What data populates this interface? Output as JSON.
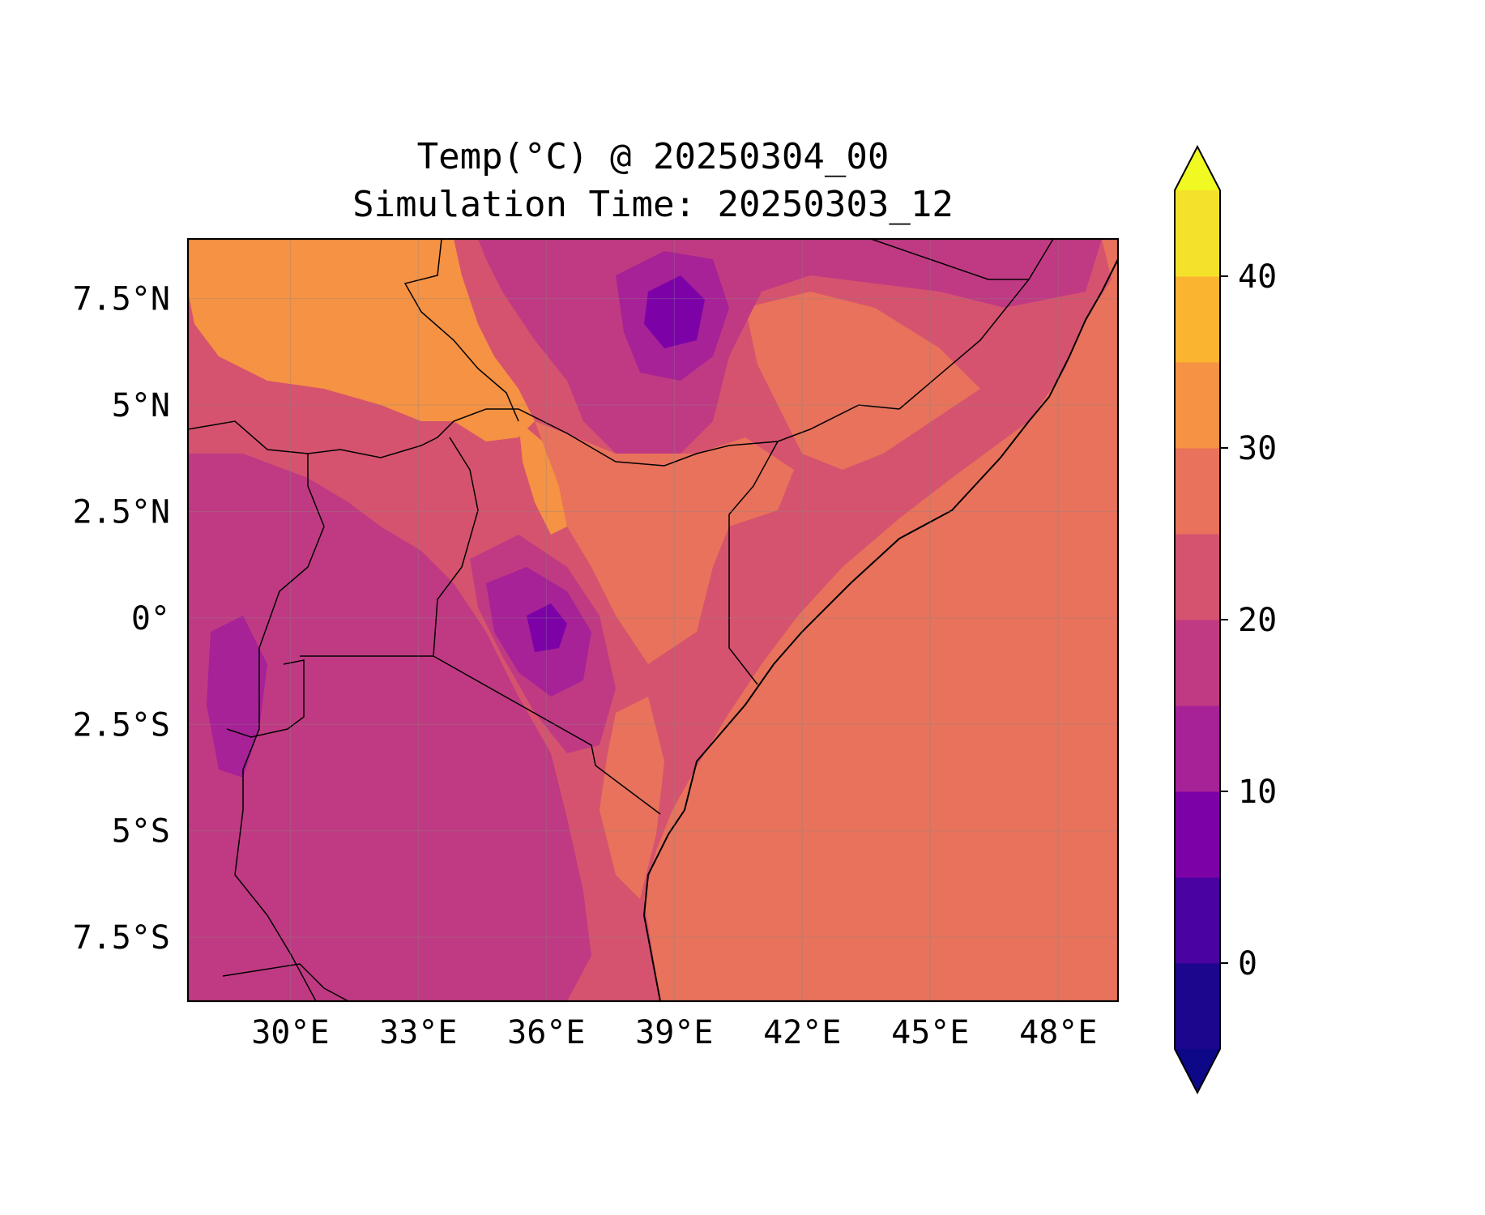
{
  "title": {
    "line1": "Temp(°C) @ 20250304_00",
    "line2": "Simulation Time: 20250303_12"
  },
  "map": {
    "extent": {
      "lon_min": 27.6,
      "lon_max": 49.4,
      "lat_min": -9.0,
      "lat_max": 8.9
    },
    "gridlines": true,
    "ocean_temp_c": 27,
    "lon_ticks": [
      {
        "value": 30,
        "label": "30°E"
      },
      {
        "value": 33,
        "label": "33°E"
      },
      {
        "value": 36,
        "label": "36°E"
      },
      {
        "value": 39,
        "label": "39°E"
      },
      {
        "value": 42,
        "label": "42°E"
      },
      {
        "value": 45,
        "label": "45°E"
      },
      {
        "value": 48,
        "label": "48°E"
      }
    ],
    "lat_ticks": [
      {
        "value": 7.5,
        "label": "7.5°N"
      },
      {
        "value": 5,
        "label": "5°N"
      },
      {
        "value": 2.5,
        "label": "2.5°N"
      },
      {
        "value": 0,
        "label": "0°"
      },
      {
        "value": -2.5,
        "label": "2.5°S"
      },
      {
        "value": -5,
        "label": "5°S"
      },
      {
        "value": -7.5,
        "label": "7.5°S"
      }
    ]
  },
  "colorbar": {
    "levels": [
      -5,
      0,
      5,
      10,
      15,
      20,
      25,
      30,
      35,
      40,
      45
    ],
    "colors": [
      "#1b068d",
      "#4903a0",
      "#7c02a8",
      "#a72197",
      "#c03a83",
      "#d5536f",
      "#e8725b",
      "#f59243",
      "#fbb430",
      "#f4e12a"
    ],
    "under_color": "#0d0887",
    "over_color": "#f0f921",
    "ticks": [
      {
        "value": 0,
        "label": "0"
      },
      {
        "value": 10,
        "label": "10"
      },
      {
        "value": 20,
        "label": "20"
      },
      {
        "value": 30,
        "label": "30"
      },
      {
        "value": 40,
        "label": "40"
      }
    ]
  }
}
